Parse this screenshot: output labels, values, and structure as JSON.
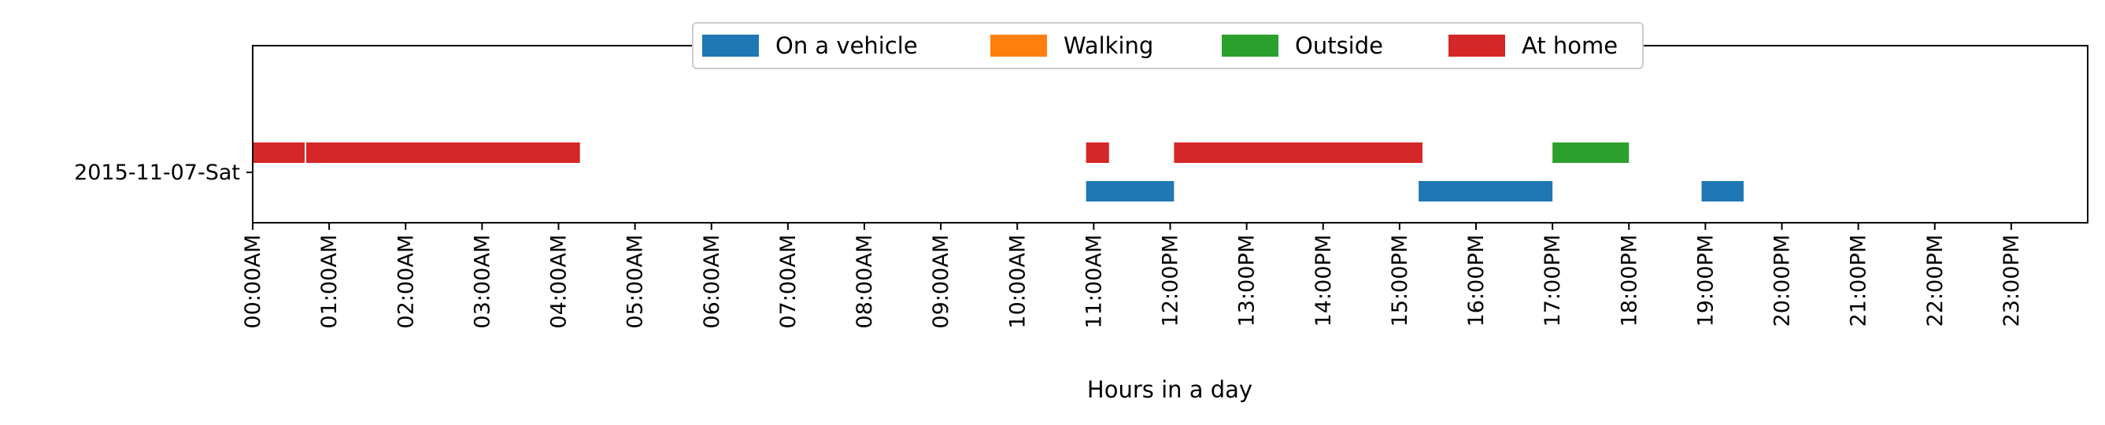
{
  "chart_data": {
    "type": "timeline",
    "xlabel": "Hours in a day",
    "ylabel": "",
    "xlim": [
      0,
      24
    ],
    "x_tick_values": [
      0,
      1,
      2,
      3,
      4,
      5,
      6,
      7,
      8,
      9,
      10,
      11,
      12,
      13,
      14,
      15,
      16,
      17,
      18,
      19,
      20,
      21,
      22,
      23
    ],
    "x_tick_labels": [
      "00:00AM",
      "01:00AM",
      "02:00AM",
      "03:00AM",
      "04:00AM",
      "05:00AM",
      "06:00AM",
      "07:00AM",
      "08:00AM",
      "09:00AM",
      "10:00AM",
      "11:00AM",
      "12:00PM",
      "13:00PM",
      "14:00PM",
      "15:00PM",
      "16:00PM",
      "17:00PM",
      "18:00PM",
      "19:00PM",
      "20:00PM",
      "21:00PM",
      "22:00PM",
      "23:00PM"
    ],
    "categories": [
      "2015-11-07-Sat"
    ],
    "legend_position": "top-center",
    "series": [
      {
        "name": "On a vehicle",
        "color": "#1f77b4",
        "lane": "lower",
        "intervals": [
          [
            10.9,
            12.05
          ],
          [
            15.25,
            17.0
          ],
          [
            18.95,
            19.5
          ]
        ]
      },
      {
        "name": "Walking",
        "color": "#ff7f0e",
        "lane": "upper",
        "intervals": []
      },
      {
        "name": "Outside",
        "color": "#2ca02c",
        "lane": "upper",
        "intervals": [
          [
            17.0,
            18.0
          ]
        ]
      },
      {
        "name": "At home",
        "color": "#d62728",
        "lane": "upper",
        "intervals": [
          [
            0.0,
            0.68
          ],
          [
            0.7,
            4.28
          ],
          [
            10.9,
            11.2
          ],
          [
            12.05,
            15.3
          ]
        ]
      }
    ]
  }
}
